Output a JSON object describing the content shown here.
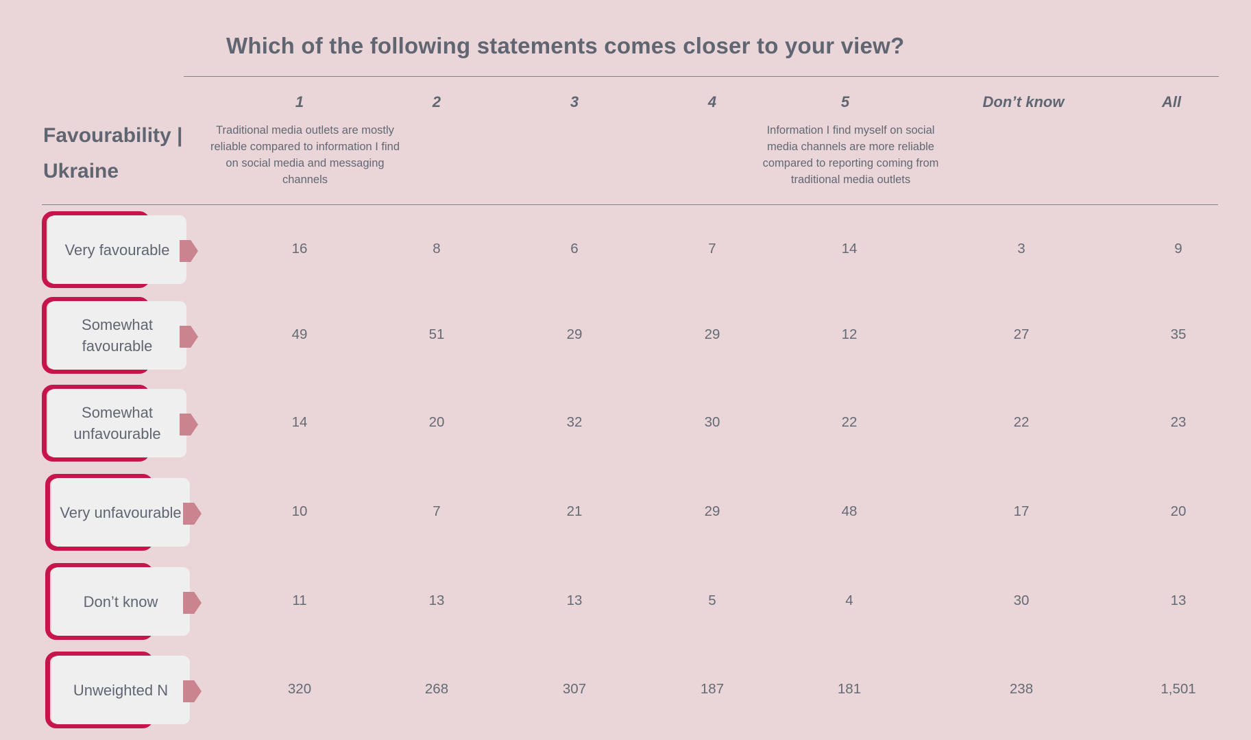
{
  "chart_data": {
    "type": "table",
    "title": "Which of the following statements comes closer to your view?",
    "row_header": "Favourability | Ukraine",
    "columns": [
      {
        "label": "1",
        "description": "Traditional media outlets are mostly reliable compared to information I find on social media and messaging channels"
      },
      {
        "label": "2",
        "description": ""
      },
      {
        "label": "3",
        "description": ""
      },
      {
        "label": "4",
        "description": ""
      },
      {
        "label": "5",
        "description": "Information I find myself on social media channels are more reliable compared to reporting coming from traditional media outlets"
      },
      {
        "label": "Don’t know",
        "description": ""
      },
      {
        "label": "All",
        "description": ""
      }
    ],
    "rows": [
      {
        "label": "Very favourable",
        "values": [
          "16",
          "8",
          "6",
          "7",
          "14",
          "3",
          "9"
        ]
      },
      {
        "label": "Somewhat favourable",
        "values": [
          "49",
          "51",
          "29",
          "29",
          "12",
          "27",
          "35"
        ]
      },
      {
        "label": "Somewhat unfavourable",
        "values": [
          "14",
          "20",
          "32",
          "30",
          "22",
          "22",
          "23"
        ]
      },
      {
        "label": "Very unfavourable",
        "values": [
          "10",
          "7",
          "21",
          "29",
          "48",
          "17",
          "20"
        ]
      },
      {
        "label": "Don’t know",
        "values": [
          "11",
          "13",
          "13",
          "5",
          "4",
          "30",
          "13"
        ]
      },
      {
        "label": "Unweighted N",
        "values": [
          "320",
          "268",
          "307",
          "187",
          "181",
          "238",
          "1,501"
        ]
      }
    ]
  },
  "colors": {
    "background": "#ead6d9",
    "accent": "#c5154b",
    "arrow": "#c98490",
    "card": "#f0eff0",
    "text": "#5f6672"
  }
}
